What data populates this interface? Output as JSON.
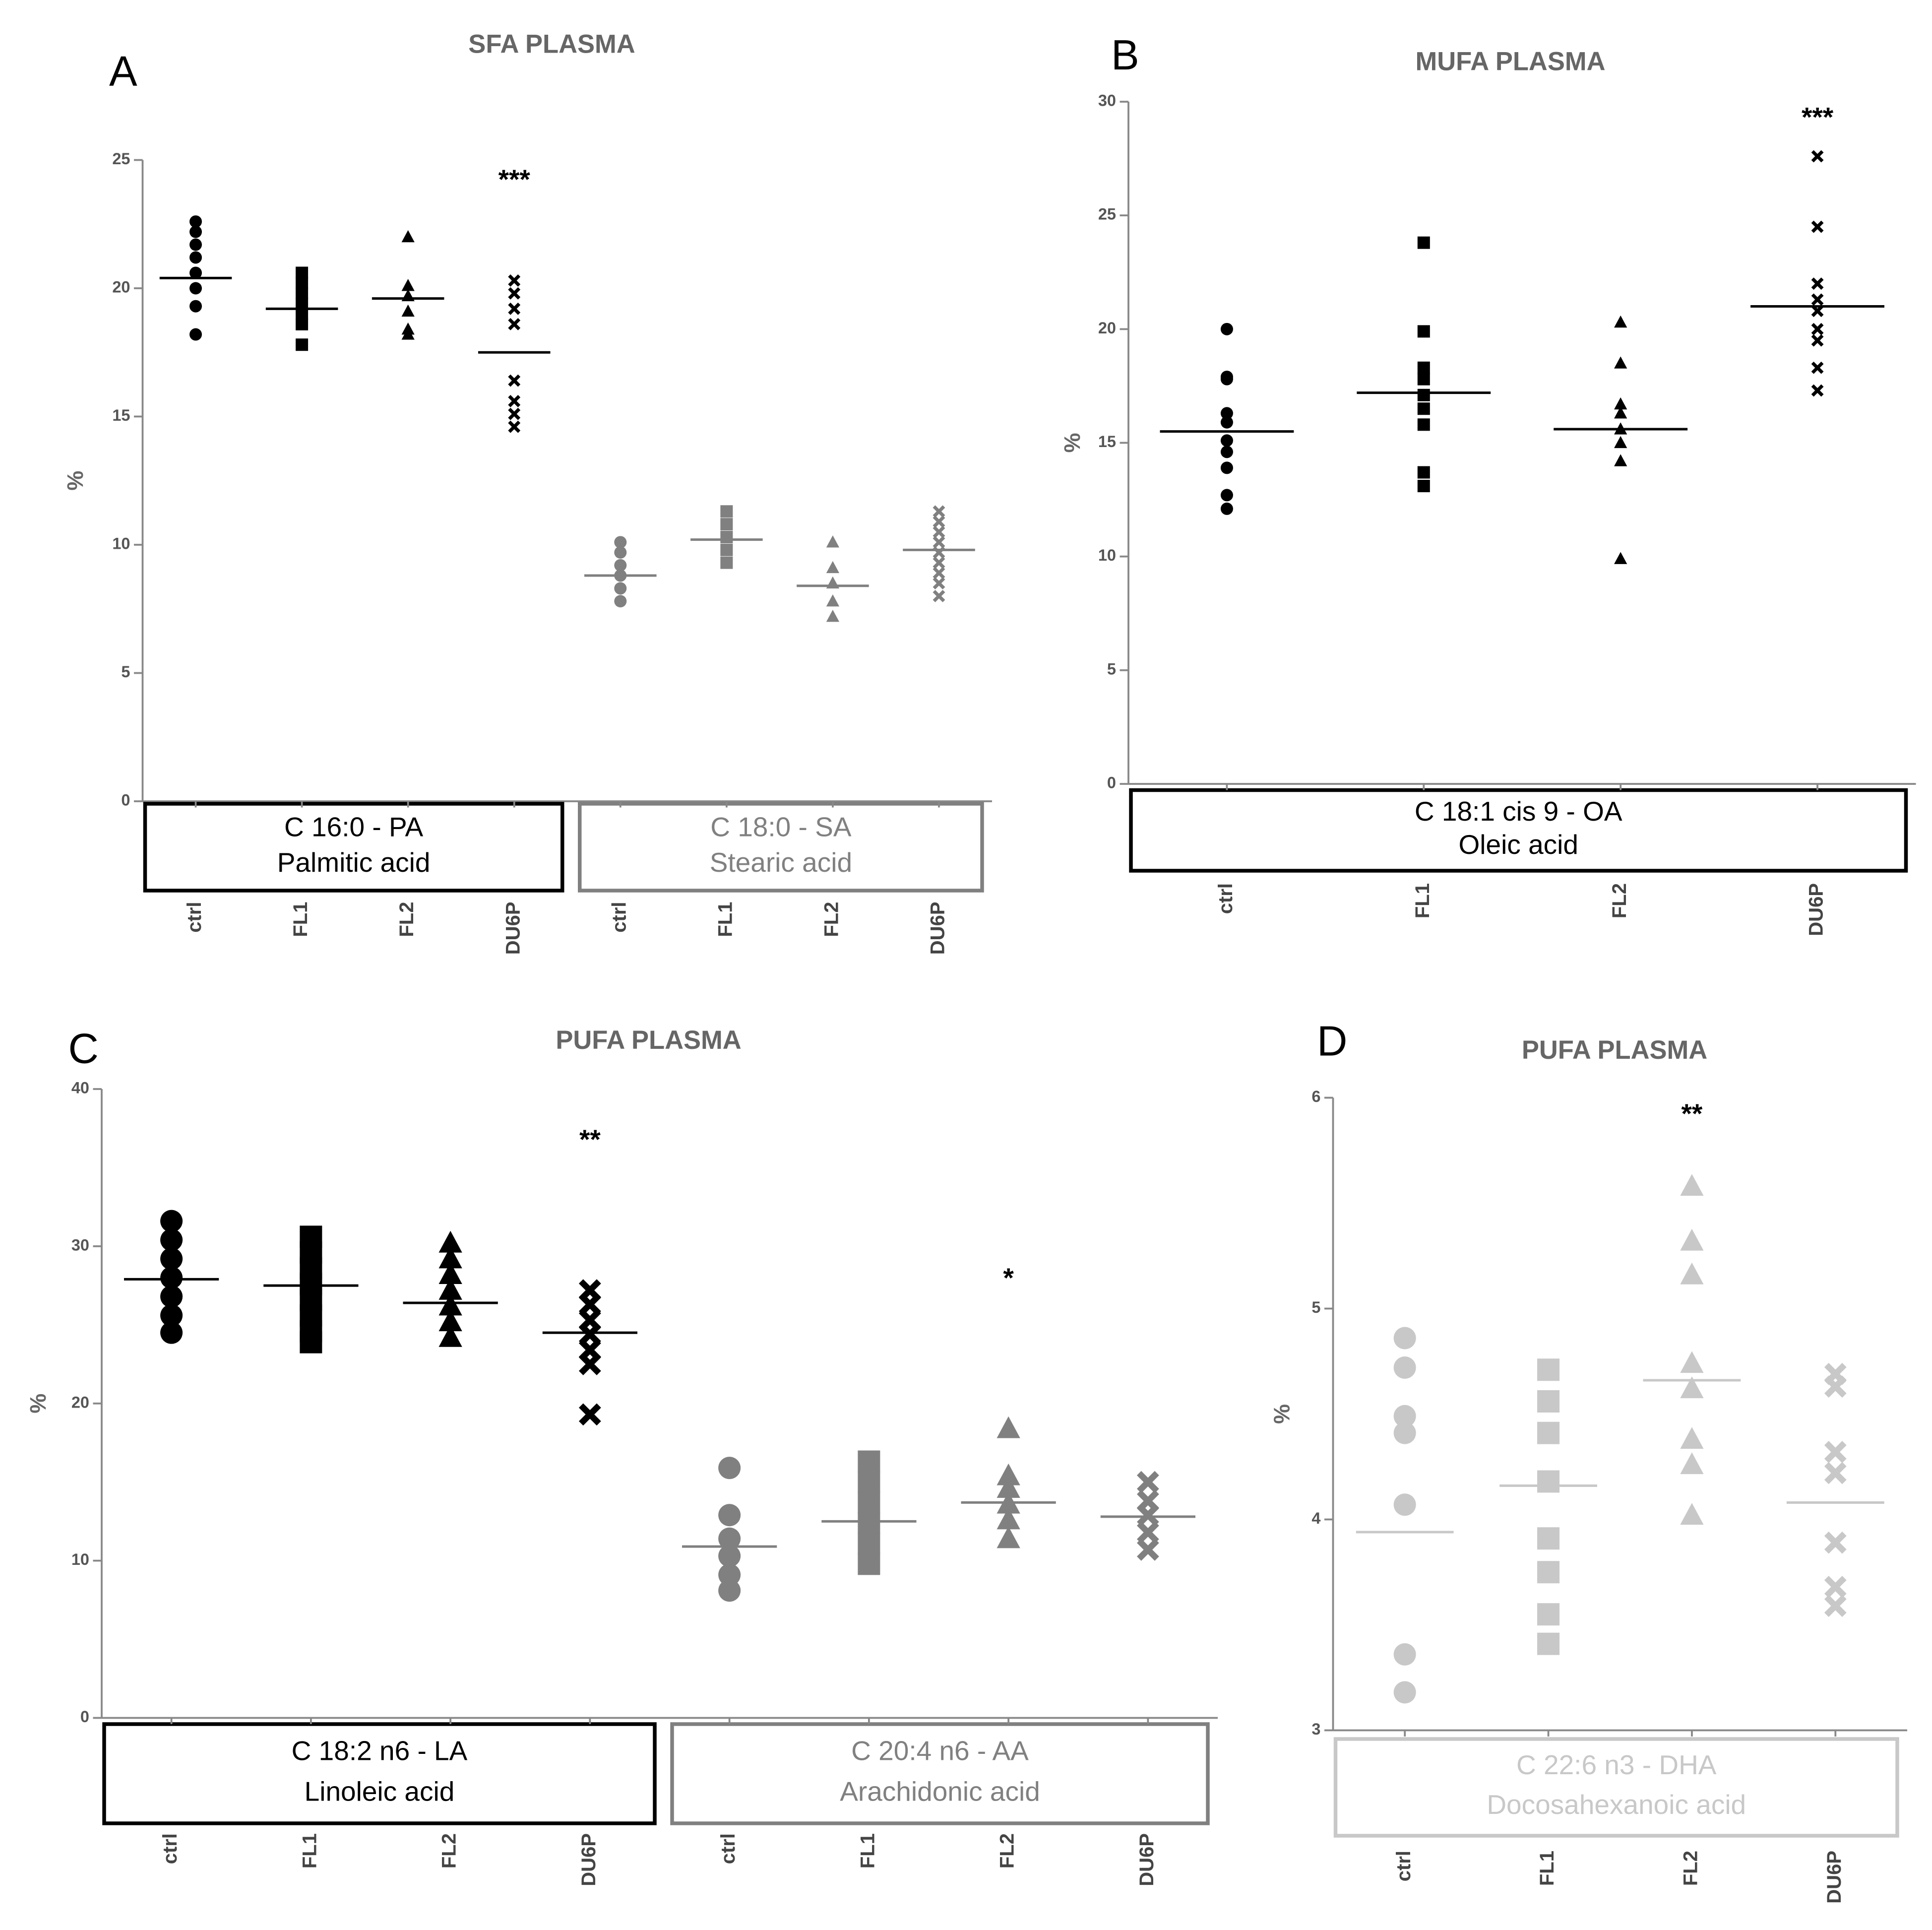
{
  "chart_data": [
    {
      "type": "dot",
      "letter": "A",
      "title": "SFA PLASMA",
      "y_label": "%",
      "ylim": [
        0,
        25
      ],
      "yticks": [
        0,
        5,
        10,
        15,
        20,
        25
      ],
      "markers": [
        "circle",
        "square",
        "triangle",
        "x"
      ],
      "series": [
        {
          "name": "C 16:0 - PA",
          "subtitle": "Palmitic acid",
          "color": "#000000",
          "categories": [
            "ctrl",
            "FL1",
            "FL2",
            "DU6P"
          ],
          "points": [
            [
              22.6,
              22.2,
              21.7,
              21.2,
              20.6,
              20.0,
              19.3,
              18.2
            ],
            [
              20.6,
              20.2,
              19.8,
              19.4,
              19.0,
              18.6,
              17.8
            ],
            [
              22.0,
              20.1,
              19.7,
              19.1,
              18.4,
              18.2
            ],
            [
              20.3,
              19.8,
              19.2,
              18.6,
              16.4,
              15.6,
              15.1,
              14.6
            ]
          ],
          "means": [
            20.4,
            19.2,
            19.6,
            17.5
          ],
          "annotations": [
            null,
            null,
            null,
            "***"
          ]
        },
        {
          "name": "C 18:0 - SA",
          "subtitle": "Stearic acid",
          "color": "#808080",
          "categories": [
            "ctrl",
            "FL1",
            "FL2",
            "DU6P"
          ],
          "points": [
            [
              10.1,
              9.7,
              9.2,
              8.8,
              8.3,
              7.8
            ],
            [
              11.3,
              10.8,
              10.3,
              9.8,
              9.3
            ],
            [
              10.1,
              9.1,
              8.5,
              7.8,
              7.2
            ],
            [
              11.3,
              10.9,
              10.5,
              10.1,
              9.7,
              9.3,
              8.9,
              8.5,
              8.0
            ]
          ],
          "means": [
            8.8,
            10.2,
            8.4,
            9.8
          ],
          "annotations": [
            null,
            null,
            null,
            null
          ]
        }
      ]
    },
    {
      "type": "dot",
      "letter": "B",
      "title": "MUFA PLASMA",
      "y_label": "%",
      "ylim": [
        0,
        30
      ],
      "yticks": [
        0,
        5,
        10,
        15,
        20,
        25,
        30
      ],
      "markers": [
        "circle",
        "square",
        "triangle",
        "x"
      ],
      "series": [
        {
          "name": "C 18:1 cis 9 - OA",
          "subtitle": "Oleic acid",
          "color": "#000000",
          "categories": [
            "ctrl",
            "FL1",
            "FL2",
            "DU6P"
          ],
          "points": [
            [
              20.0,
              17.9,
              17.8,
              16.3,
              15.9,
              15.1,
              14.6,
              13.9,
              12.7,
              12.1
            ],
            [
              23.8,
              19.9,
              18.3,
              17.8,
              17.1,
              16.5,
              15.8,
              13.7,
              13.1
            ],
            [
              20.3,
              18.5,
              16.7,
              16.3,
              15.6,
              15.0,
              14.2,
              9.9
            ],
            [
              27.6,
              24.5,
              22.0,
              21.3,
              20.8,
              20.0,
              19.5,
              18.3,
              17.3
            ]
          ],
          "means": [
            15.5,
            17.2,
            15.6,
            21.0
          ],
          "annotations": [
            null,
            null,
            null,
            "***"
          ]
        }
      ]
    },
    {
      "type": "dot",
      "letter": "C",
      "title": "PUFA PLASMA",
      "y_label": "%",
      "ylim": [
        0,
        40
      ],
      "yticks": [
        0,
        10,
        20,
        30,
        40
      ],
      "markers": [
        "circle",
        "square",
        "triangle",
        "x"
      ],
      "series": [
        {
          "name": "C 18:2 n6 - LA",
          "subtitle": "Linoleic acid",
          "color": "#000000",
          "categories": [
            "ctrl",
            "FL1",
            "FL2",
            "DU6P"
          ],
          "points": [
            [
              31.6,
              30.4,
              29.2,
              28.0,
              26.8,
              25.6,
              24.5
            ],
            [
              30.6,
              29.6,
              28.6,
              27.6,
              26.6,
              25.6,
              24.6,
              23.9
            ],
            [
              30.2,
              29.2,
              28.2,
              27.2,
              26.2,
              25.2,
              24.2
            ],
            [
              27.2,
              26.3,
              25.3,
              24.4,
              23.4,
              22.5,
              19.3
            ]
          ],
          "means": [
            27.9,
            27.5,
            26.4,
            24.5
          ],
          "annotations": [
            null,
            null,
            null,
            "**"
          ]
        },
        {
          "name": "C 20:4 n6 - AA",
          "subtitle": "Arachidonic acid",
          "color": "#808080",
          "categories": [
            "ctrl",
            "FL1",
            "FL2",
            "DU6P"
          ],
          "points": [
            [
              15.9,
              12.9,
              11.4,
              10.3,
              9.1,
              8.1
            ],
            [
              16.3,
              15.0,
              13.7,
              12.4,
              11.1,
              9.8
            ],
            [
              18.4,
              15.4,
              14.6,
              13.6,
              12.6,
              11.4
            ],
            [
              15.0,
              13.8,
              12.9,
              11.8,
              10.7
            ]
          ],
          "means": [
            10.9,
            12.5,
            13.7,
            12.8
          ],
          "annotations": [
            null,
            null,
            "*",
            null
          ]
        }
      ]
    },
    {
      "type": "dot",
      "letter": "D",
      "title": "PUFA PLASMA",
      "y_label": "%",
      "ylim": [
        3,
        6
      ],
      "yticks": [
        3,
        4,
        5,
        6
      ],
      "markers": [
        "circle",
        "square",
        "triangle",
        "x"
      ],
      "series": [
        {
          "name": "C 22:6 n3 - DHA",
          "subtitle": "Docosahexanoic acid",
          "color": "#c8c8c8",
          "categories": [
            "ctrl",
            "FL1",
            "FL2",
            "DU6P"
          ],
          "points": [
            [
              4.86,
              4.72,
              4.49,
              4.41,
              4.07,
              3.36,
              3.18
            ],
            [
              4.71,
              4.56,
              4.41,
              4.18,
              3.91,
              3.75,
              3.55,
              3.41
            ],
            [
              5.58,
              5.32,
              5.16,
              4.74,
              4.62,
              4.38,
              4.26,
              4.02
            ],
            [
              4.69,
              4.63,
              4.32,
              4.22,
              3.89,
              3.68,
              3.59
            ]
          ],
          "means": [
            3.94,
            4.16,
            4.66,
            4.08
          ],
          "annotations": [
            null,
            null,
            "**",
            null
          ]
        }
      ]
    }
  ]
}
